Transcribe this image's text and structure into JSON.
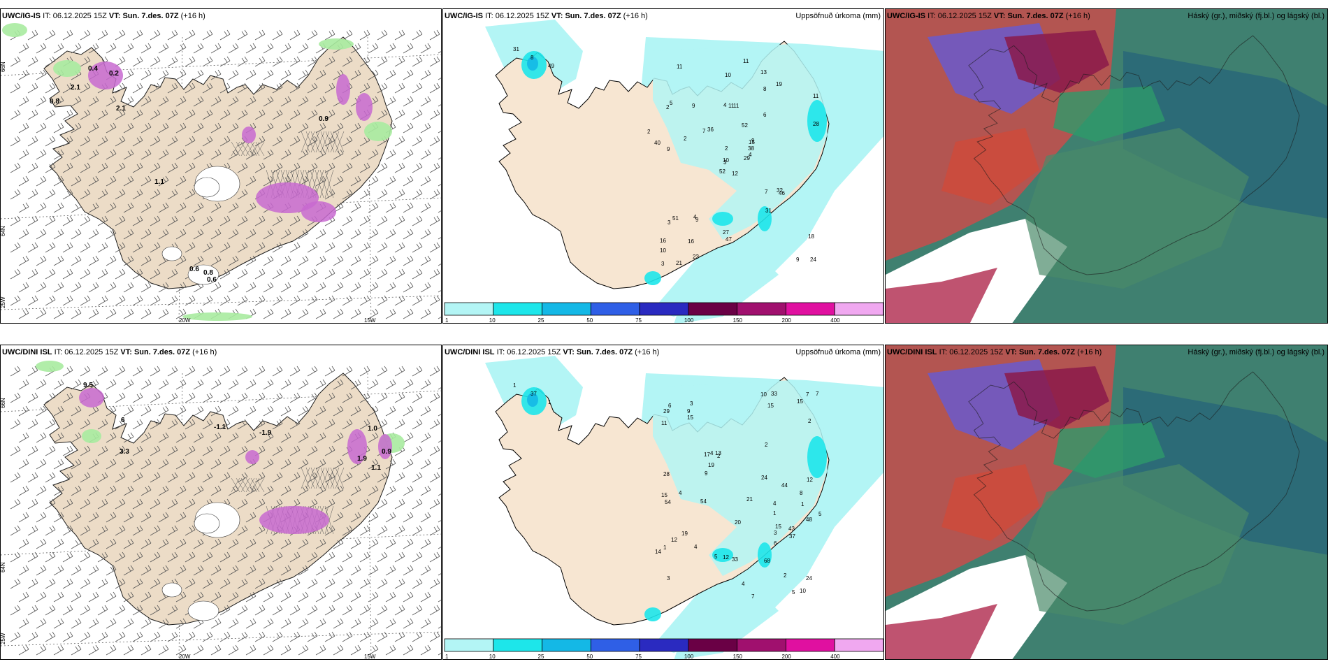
{
  "panels": [
    {
      "id": "p1",
      "model": "UWC/IG-IS",
      "it_label": "IT:",
      "it": "06.12.2025 15Z",
      "vt_label": "VT:",
      "vt": "Sun. 7.des. 07Z",
      "lead": "(+16 h)",
      "right_title": ""
    },
    {
      "id": "p2",
      "model": "UWC/IG-IS",
      "it_label": "IT:",
      "it": "06.12.2025 15Z",
      "vt_label": "VT:",
      "vt": "Sun. 7.des. 07Z",
      "lead": "(+16 h)",
      "right_title": "Uppsöfnuð úrkoma (mm)"
    },
    {
      "id": "p3",
      "model": "UWC/IG-IS",
      "it_label": "IT:",
      "it": "06.12.2025 15Z",
      "vt_label": "VT:",
      "vt": "Sun. 7.des. 07Z",
      "lead": "(+16 h)",
      "right_title": "Háský (gr.), miðský (fj.bl.) og lágský (bl.)"
    },
    {
      "id": "p4",
      "model": "UWC/DINI ISL",
      "it_label": "IT:",
      "it": "06.12.2025 15Z",
      "vt_label": "VT:",
      "vt": "Sun. 7.des. 07Z",
      "lead": "(+16 h)",
      "right_title": ""
    },
    {
      "id": "p5",
      "model": "UWC/DINI ISL",
      "it_label": "IT:",
      "it": "06.12.2025 15Z",
      "vt_label": "VT:",
      "vt": "Sun. 7.des. 07Z",
      "lead": "(+16 h)",
      "right_title": "Uppsöfnuð úrkoma (mm)"
    },
    {
      "id": "p6",
      "model": "UWC/DINI ISL",
      "it_label": "IT:",
      "it": "06.12.2025 15Z",
      "vt_label": "VT:",
      "vt": "Sun. 7.des. 07Z",
      "lead": "(+16 h)",
      "right_title": "Háský (gr.), miðský (fj.bl.) og lágský (bl.)"
    }
  ],
  "grid_labels": {
    "lat_66": "66N",
    "lat_64": "64N",
    "lon_25": "25W",
    "lon_20": "20W",
    "lon_15": "15W"
  },
  "legend": {
    "ticks": [
      "1",
      "10",
      "25",
      "50",
      "75",
      "100",
      "150",
      "200",
      "400"
    ],
    "colors": [
      "#b3f5f5",
      "#1de6ea",
      "#14b8e6",
      "#2f5fe6",
      "#2a2ac0",
      "#6a0045",
      "#a0106e",
      "#e010a0",
      "#f0a8f0"
    ]
  },
  "precip_top_values": [
    "31",
    "8",
    "49",
    "12",
    "2",
    "3",
    "16",
    "15",
    "9",
    "13",
    "11",
    "8",
    "29",
    "11",
    "24",
    "9",
    "11",
    "52",
    "6",
    "21",
    "4",
    "52",
    "51",
    "36",
    "10",
    "16",
    "11",
    "9",
    "46",
    "5",
    "10",
    "40",
    "7",
    "28",
    "10",
    "27",
    "2",
    "9",
    "19",
    "4",
    "9",
    "18",
    "32",
    "11",
    "7",
    "2",
    "31",
    "23",
    "2",
    "38",
    "3",
    "47",
    "4",
    "3"
  ],
  "precip_bottom_values": [
    "1",
    "37",
    "1",
    "1",
    "1",
    "3",
    "3",
    "2",
    "2",
    "1",
    "15",
    "17",
    "7",
    "11",
    "15",
    "29",
    "24",
    "5",
    "12",
    "20",
    "21",
    "13",
    "19",
    "7",
    "15",
    "9",
    "48",
    "10",
    "9",
    "15",
    "54",
    "15",
    "44",
    "4",
    "68",
    "19",
    "54",
    "8",
    "37",
    "3",
    "4",
    "33",
    "12",
    "2",
    "33",
    "10",
    "12",
    "43",
    "4",
    "14",
    "6",
    "24",
    "28",
    "5",
    "4",
    "7",
    "4",
    "6",
    "5",
    "2"
  ],
  "temp_top_values": [
    "0.8",
    "2.1",
    "0.4",
    "0.2",
    "0.6",
    "0.8",
    "1.1",
    "2.1",
    "0.9",
    "0.6"
  ],
  "temp_bottom_values": [
    "9.5",
    "6",
    "-1.1",
    "-1.9",
    "1.0",
    "0.9",
    "1.1",
    "1.9",
    "3.3"
  ],
  "colors": {
    "land": "#ecdcc7",
    "coast": "#1a1a1a",
    "precip_light": "#b3f5f5",
    "snow_magenta": "#cc55cc",
    "green": "#b8f0b0"
  }
}
